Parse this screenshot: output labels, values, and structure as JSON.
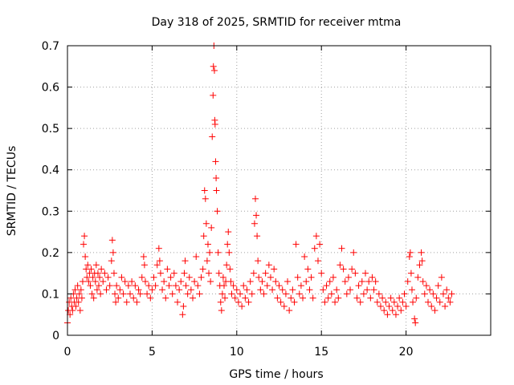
{
  "chart_data": {
    "type": "scatter",
    "title": "Day 318 of 2025, SRMTID for receiver mtma",
    "xlabel": "GPS time / hours",
    "ylabel": "SRMTID / TECUs",
    "xlim": [
      0,
      25
    ],
    "ylim": [
      0,
      0.7
    ],
    "xticks": [
      0,
      5,
      10,
      15,
      20
    ],
    "yticks": [
      0,
      0.1,
      0.2,
      0.3,
      0.4,
      0.5,
      0.6,
      0.7
    ],
    "xtick_labels": [
      "0",
      "5",
      "10",
      "15",
      "20"
    ],
    "ytick_labels": [
      "0",
      "0.1",
      "0.2",
      "0.3",
      "0.4",
      "0.5",
      "0.6",
      "0.7"
    ],
    "grid": true,
    "marker": "+",
    "color": "#ff0000",
    "series": [
      {
        "name": "SRMTID",
        "points": [
          [
            0.0,
            0.03
          ],
          [
            0.05,
            0.06
          ],
          [
            0.1,
            0.08
          ],
          [
            0.15,
            0.05
          ],
          [
            0.2,
            0.09
          ],
          [
            0.25,
            0.07
          ],
          [
            0.3,
            0.06
          ],
          [
            0.35,
            0.1
          ],
          [
            0.4,
            0.08
          ],
          [
            0.45,
            0.11
          ],
          [
            0.5,
            0.07
          ],
          [
            0.55,
            0.09
          ],
          [
            0.6,
            0.12
          ],
          [
            0.65,
            0.08
          ],
          [
            0.7,
            0.1
          ],
          [
            0.75,
            0.06
          ],
          [
            0.8,
            0.11
          ],
          [
            0.85,
            0.09
          ],
          [
            0.9,
            0.13
          ],
          [
            0.95,
            0.22
          ],
          [
            1.0,
            0.24
          ],
          [
            1.05,
            0.19
          ],
          [
            1.1,
            0.16
          ],
          [
            1.15,
            0.14
          ],
          [
            1.2,
            0.17
          ],
          [
            1.25,
            0.13
          ],
          [
            1.3,
            0.15
          ],
          [
            1.35,
            0.12
          ],
          [
            1.4,
            0.16
          ],
          [
            1.45,
            0.1
          ],
          [
            1.5,
            0.14
          ],
          [
            1.55,
            0.09
          ],
          [
            1.6,
            0.15
          ],
          [
            1.65,
            0.13
          ],
          [
            1.7,
            0.17
          ],
          [
            1.75,
            0.11
          ],
          [
            1.8,
            0.15
          ],
          [
            1.85,
            0.12
          ],
          [
            1.9,
            0.14
          ],
          [
            1.95,
            0.1
          ],
          [
            2.0,
            0.16
          ],
          [
            2.1,
            0.13
          ],
          [
            2.2,
            0.15
          ],
          [
            2.3,
            0.11
          ],
          [
            2.4,
            0.14
          ],
          [
            2.5,
            0.12
          ],
          [
            2.6,
            0.18
          ],
          [
            2.65,
            0.23
          ],
          [
            2.7,
            0.2
          ],
          [
            2.75,
            0.15
          ],
          [
            2.8,
            0.1
          ],
          [
            2.85,
            0.08
          ],
          [
            2.9,
            0.12
          ],
          [
            3.0,
            0.09
          ],
          [
            3.1,
            0.11
          ],
          [
            3.2,
            0.14
          ],
          [
            3.3,
            0.1
          ],
          [
            3.4,
            0.13
          ],
          [
            3.5,
            0.08
          ],
          [
            3.6,
            0.12
          ],
          [
            3.7,
            0.1
          ],
          [
            3.8,
            0.13
          ],
          [
            3.9,
            0.09
          ],
          [
            4.0,
            0.12
          ],
          [
            4.1,
            0.08
          ],
          [
            4.2,
            0.11
          ],
          [
            4.3,
            0.1
          ],
          [
            4.4,
            0.14
          ],
          [
            4.5,
            0.19
          ],
          [
            4.55,
            0.17
          ],
          [
            4.6,
            0.13
          ],
          [
            4.7,
            0.1
          ],
          [
            4.8,
            0.12
          ],
          [
            4.9,
            0.09
          ],
          [
            5.0,
            0.11
          ],
          [
            5.1,
            0.14
          ],
          [
            5.2,
            0.12
          ],
          [
            5.3,
            0.17
          ],
          [
            5.4,
            0.21
          ],
          [
            5.45,
            0.18
          ],
          [
            5.5,
            0.15
          ],
          [
            5.6,
            0.11
          ],
          [
            5.7,
            0.13
          ],
          [
            5.8,
            0.09
          ],
          [
            5.9,
            0.16
          ],
          [
            6.0,
            0.12
          ],
          [
            6.1,
            0.14
          ],
          [
            6.2,
            0.1
          ],
          [
            6.3,
            0.15
          ],
          [
            6.4,
            0.12
          ],
          [
            6.5,
            0.08
          ],
          [
            6.6,
            0.11
          ],
          [
            6.7,
            0.13
          ],
          [
            6.8,
            0.05
          ],
          [
            6.85,
            0.07
          ],
          [
            6.9,
            0.15
          ],
          [
            6.95,
            0.18
          ],
          [
            7.0,
            0.12
          ],
          [
            7.1,
            0.1
          ],
          [
            7.2,
            0.14
          ],
          [
            7.3,
            0.11
          ],
          [
            7.4,
            0.09
          ],
          [
            7.5,
            0.13
          ],
          [
            7.6,
            0.19
          ],
          [
            7.7,
            0.12
          ],
          [
            7.8,
            0.1
          ],
          [
            7.9,
            0.14
          ],
          [
            8.0,
            0.16
          ],
          [
            8.05,
            0.24
          ],
          [
            8.1,
            0.35
          ],
          [
            8.15,
            0.33
          ],
          [
            8.2,
            0.27
          ],
          [
            8.25,
            0.18
          ],
          [
            8.3,
            0.22
          ],
          [
            8.35,
            0.15
          ],
          [
            8.4,
            0.2
          ],
          [
            8.45,
            0.13
          ],
          [
            8.5,
            0.26
          ],
          [
            8.55,
            0.48
          ],
          [
            8.6,
            0.58
          ],
          [
            8.62,
            0.65
          ],
          [
            8.65,
            0.7
          ],
          [
            8.68,
            0.64
          ],
          [
            8.7,
            0.52
          ],
          [
            8.72,
            0.51
          ],
          [
            8.75,
            0.42
          ],
          [
            8.78,
            0.38
          ],
          [
            8.8,
            0.35
          ],
          [
            8.85,
            0.3
          ],
          [
            8.9,
            0.2
          ],
          [
            8.95,
            0.15
          ],
          [
            9.0,
            0.12
          ],
          [
            9.05,
            0.08
          ],
          [
            9.1,
            0.06
          ],
          [
            9.15,
            0.1
          ],
          [
            9.2,
            0.14
          ],
          [
            9.25,
            0.12
          ],
          [
            9.3,
            0.09
          ],
          [
            9.35,
            0.13
          ],
          [
            9.4,
            0.17
          ],
          [
            9.45,
            0.22
          ],
          [
            9.5,
            0.25
          ],
          [
            9.55,
            0.2
          ],
          [
            9.6,
            0.16
          ],
          [
            9.65,
            0.13
          ],
          [
            9.7,
            0.1
          ],
          [
            9.8,
            0.12
          ],
          [
            9.9,
            0.09
          ],
          [
            10.0,
            0.11
          ],
          [
            10.1,
            0.08
          ],
          [
            10.2,
            0.1
          ],
          [
            10.3,
            0.07
          ],
          [
            10.4,
            0.12
          ],
          [
            10.5,
            0.09
          ],
          [
            10.6,
            0.11
          ],
          [
            10.7,
            0.08
          ],
          [
            10.8,
            0.13
          ],
          [
            10.9,
            0.1
          ],
          [
            11.0,
            0.15
          ],
          [
            11.05,
            0.27
          ],
          [
            11.1,
            0.33
          ],
          [
            11.15,
            0.29
          ],
          [
            11.2,
            0.24
          ],
          [
            11.25,
            0.18
          ],
          [
            11.3,
            0.14
          ],
          [
            11.4,
            0.11
          ],
          [
            11.5,
            0.13
          ],
          [
            11.6,
            0.1
          ],
          [
            11.7,
            0.15
          ],
          [
            11.8,
            0.12
          ],
          [
            11.9,
            0.17
          ],
          [
            12.0,
            0.14
          ],
          [
            12.1,
            0.11
          ],
          [
            12.2,
            0.16
          ],
          [
            12.3,
            0.13
          ],
          [
            12.4,
            0.09
          ],
          [
            12.5,
            0.12
          ],
          [
            12.6,
            0.08
          ],
          [
            12.7,
            0.11
          ],
          [
            12.8,
            0.07
          ],
          [
            12.9,
            0.1
          ],
          [
            13.0,
            0.13
          ],
          [
            13.1,
            0.06
          ],
          [
            13.2,
            0.09
          ],
          [
            13.3,
            0.11
          ],
          [
            13.4,
            0.08
          ],
          [
            13.5,
            0.22
          ],
          [
            13.6,
            0.14
          ],
          [
            13.7,
            0.1
          ],
          [
            13.8,
            0.12
          ],
          [
            13.9,
            0.09
          ],
          [
            14.0,
            0.19
          ],
          [
            14.1,
            0.13
          ],
          [
            14.2,
            0.16
          ],
          [
            14.3,
            0.11
          ],
          [
            14.4,
            0.14
          ],
          [
            14.5,
            0.09
          ],
          [
            14.6,
            0.21
          ],
          [
            14.7,
            0.24
          ],
          [
            14.8,
            0.18
          ],
          [
            14.9,
            0.22
          ],
          [
            15.0,
            0.15
          ],
          [
            15.1,
            0.11
          ],
          [
            15.2,
            0.08
          ],
          [
            15.3,
            0.12
          ],
          [
            15.4,
            0.09
          ],
          [
            15.5,
            0.13
          ],
          [
            15.6,
            0.1
          ],
          [
            15.7,
            0.14
          ],
          [
            15.8,
            0.08
          ],
          [
            15.9,
            0.11
          ],
          [
            16.0,
            0.09
          ],
          [
            16.1,
            0.17
          ],
          [
            16.2,
            0.21
          ],
          [
            16.3,
            0.16
          ],
          [
            16.4,
            0.13
          ],
          [
            16.5,
            0.1
          ],
          [
            16.6,
            0.14
          ],
          [
            16.7,
            0.11
          ],
          [
            16.8,
            0.16
          ],
          [
            16.9,
            0.2
          ],
          [
            17.0,
            0.15
          ],
          [
            17.1,
            0.09
          ],
          [
            17.2,
            0.12
          ],
          [
            17.3,
            0.08
          ],
          [
            17.4,
            0.13
          ],
          [
            17.5,
            0.1
          ],
          [
            17.6,
            0.15
          ],
          [
            17.7,
            0.11
          ],
          [
            17.8,
            0.13
          ],
          [
            17.9,
            0.09
          ],
          [
            18.0,
            0.14
          ],
          [
            18.1,
            0.11
          ],
          [
            18.2,
            0.13
          ],
          [
            18.3,
            0.08
          ],
          [
            18.4,
            0.1
          ],
          [
            18.5,
            0.07
          ],
          [
            18.6,
            0.09
          ],
          [
            18.7,
            0.06
          ],
          [
            18.8,
            0.08
          ],
          [
            18.9,
            0.05
          ],
          [
            19.0,
            0.07
          ],
          [
            19.1,
            0.09
          ],
          [
            19.2,
            0.06
          ],
          [
            19.3,
            0.08
          ],
          [
            19.4,
            0.05
          ],
          [
            19.5,
            0.07
          ],
          [
            19.6,
            0.09
          ],
          [
            19.7,
            0.06
          ],
          [
            19.8,
            0.08
          ],
          [
            19.9,
            0.1
          ],
          [
            20.0,
            0.07
          ],
          [
            20.1,
            0.13
          ],
          [
            20.2,
            0.19
          ],
          [
            20.25,
            0.2
          ],
          [
            20.3,
            0.15
          ],
          [
            20.35,
            0.11
          ],
          [
            20.4,
            0.08
          ],
          [
            20.5,
            0.04
          ],
          [
            20.55,
            0.03
          ],
          [
            20.6,
            0.09
          ],
          [
            20.7,
            0.14
          ],
          [
            20.8,
            0.17
          ],
          [
            20.9,
            0.2
          ],
          [
            20.95,
            0.18
          ],
          [
            21.0,
            0.13
          ],
          [
            21.1,
            0.1
          ],
          [
            21.2,
            0.12
          ],
          [
            21.3,
            0.08
          ],
          [
            21.4,
            0.11
          ],
          [
            21.5,
            0.07
          ],
          [
            21.6,
            0.1
          ],
          [
            21.7,
            0.06
          ],
          [
            21.8,
            0.09
          ],
          [
            21.9,
            0.12
          ],
          [
            22.0,
            0.08
          ],
          [
            22.1,
            0.14
          ],
          [
            22.2,
            0.1
          ],
          [
            22.3,
            0.07
          ],
          [
            22.4,
            0.11
          ],
          [
            22.5,
            0.09
          ],
          [
            22.6,
            0.08
          ],
          [
            22.7,
            0.1
          ]
        ]
      }
    ]
  }
}
